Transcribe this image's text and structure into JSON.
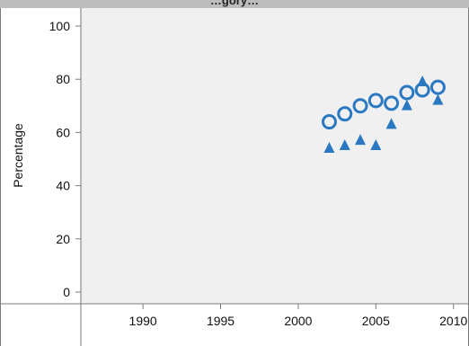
{
  "chart_data": {
    "type": "scatter",
    "title": "…gory…",
    "ylabel": "Percentage",
    "xlabel": "",
    "xlim": [
      1986,
      2011
    ],
    "ylim": [
      -5,
      105
    ],
    "x_ticks": [
      1990,
      1995,
      2000,
      2005,
      2010
    ],
    "y_ticks": [
      0,
      20,
      40,
      60,
      80,
      100
    ],
    "grid": false,
    "series": [
      {
        "marker": "circle-open",
        "color": "#2a78c2",
        "points": [
          {
            "x": 2002,
            "y": 64
          },
          {
            "x": 2003,
            "y": 67
          },
          {
            "x": 2004,
            "y": 70
          },
          {
            "x": 2005,
            "y": 72
          },
          {
            "x": 2006,
            "y": 71
          },
          {
            "x": 2007,
            "y": 75
          },
          {
            "x": 2008,
            "y": 76
          },
          {
            "x": 2009,
            "y": 77
          }
        ]
      },
      {
        "marker": "triangle-filled",
        "color": "#2a78c2",
        "points": [
          {
            "x": 2002,
            "y": 54
          },
          {
            "x": 2003,
            "y": 55
          },
          {
            "x": 2004,
            "y": 57
          },
          {
            "x": 2005,
            "y": 55
          },
          {
            "x": 2006,
            "y": 63
          },
          {
            "x": 2007,
            "y": 70
          },
          {
            "x": 2008,
            "y": 79
          },
          {
            "x": 2009,
            "y": 72
          }
        ]
      }
    ]
  }
}
